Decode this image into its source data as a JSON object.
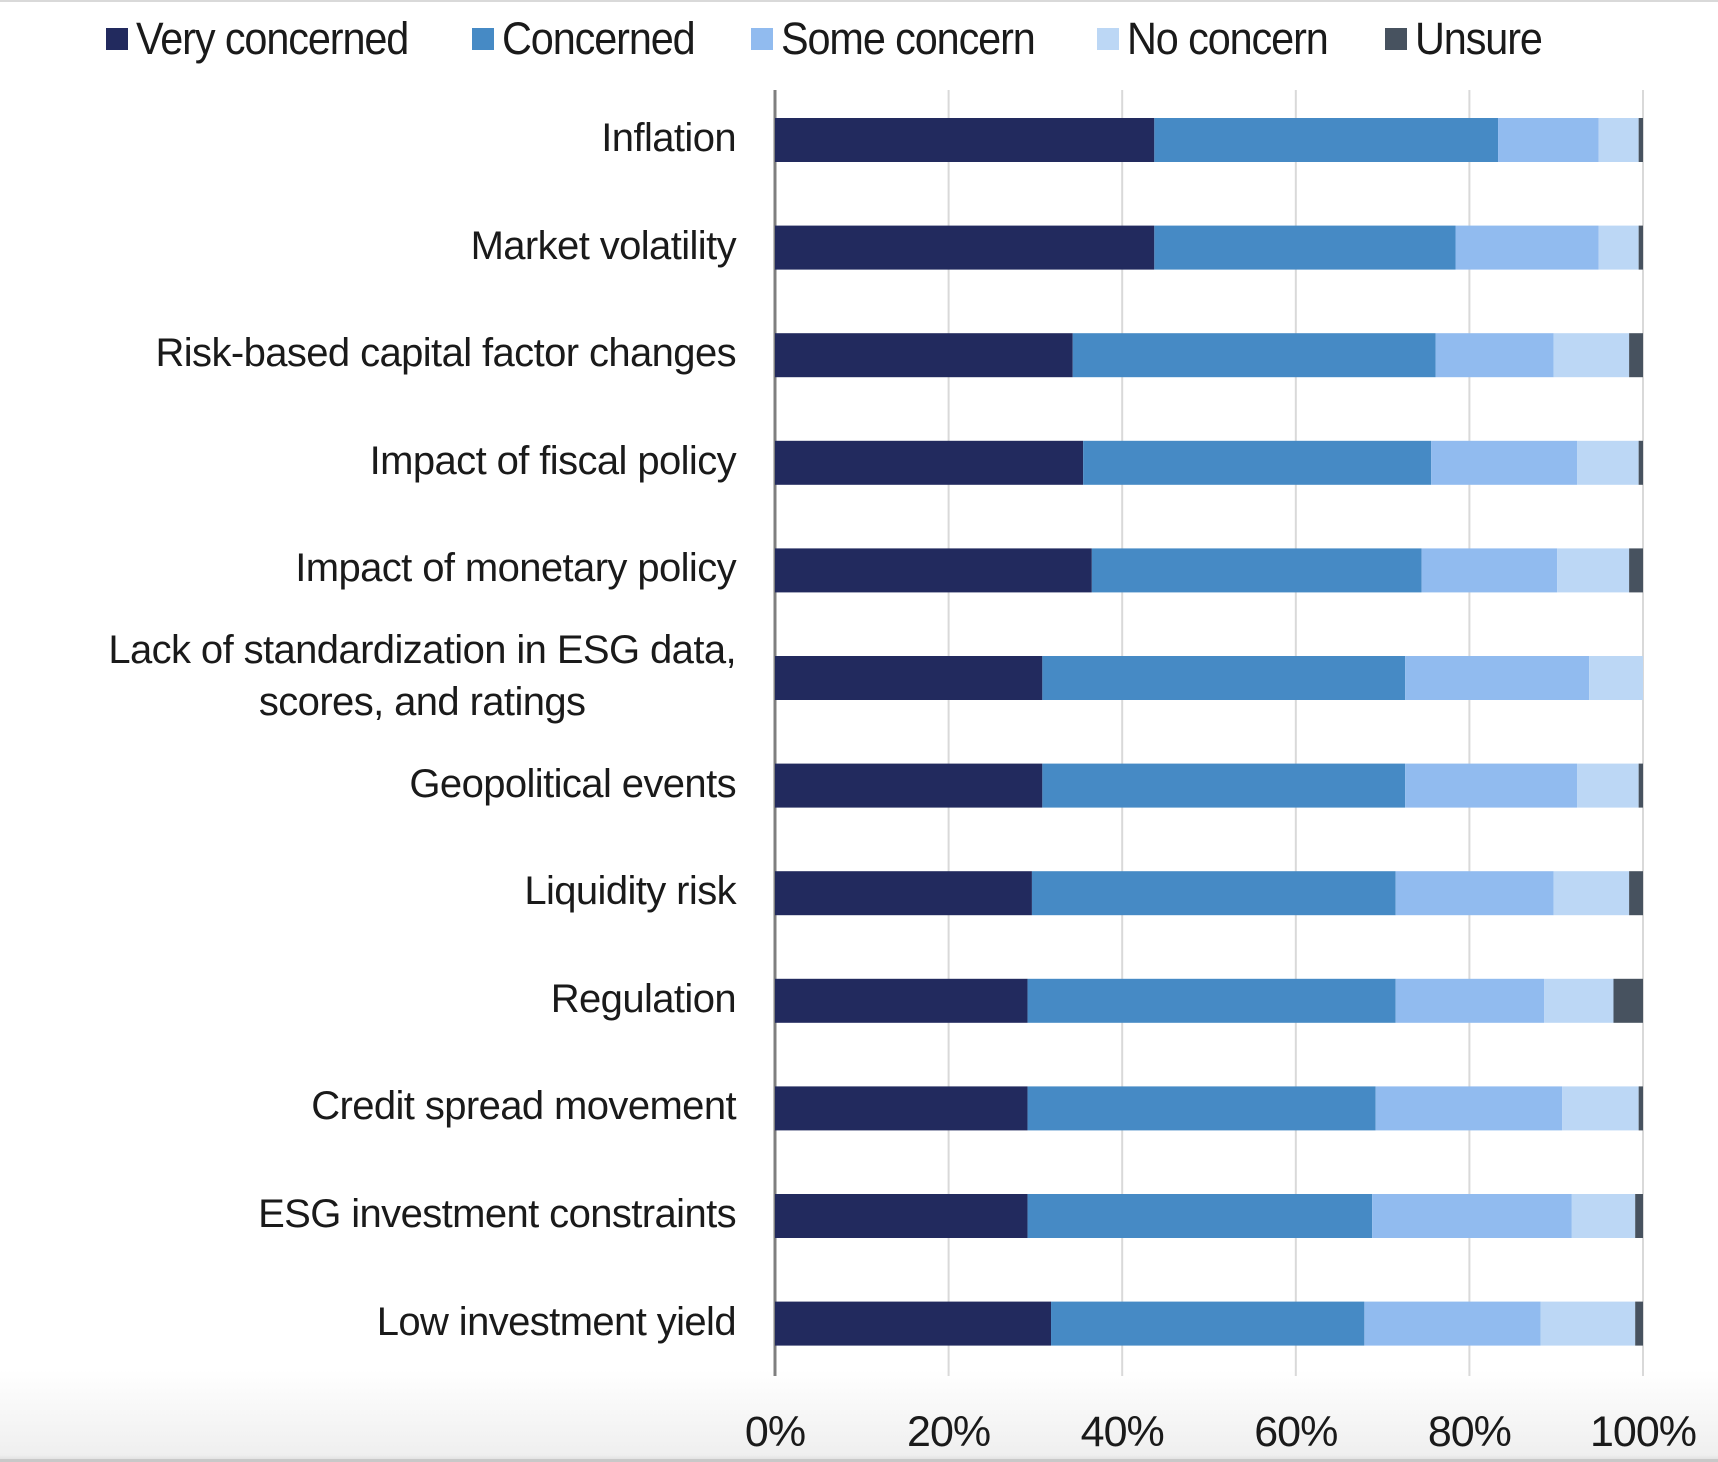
{
  "chart_data": {
    "type": "bar",
    "orientation": "horizontal",
    "stacked": "100%",
    "title": "",
    "xlabel": "",
    "ylabel": "",
    "xlim": [
      0,
      100
    ],
    "x_ticks": [
      "0%",
      "20%",
      "40%",
      "60%",
      "80%",
      "100%"
    ],
    "grid": true,
    "legend_position": "top",
    "categories": [
      "Inflation",
      "Market volatility",
      "Risk-based capital factor changes",
      "Impact of fiscal policy",
      "Impact of monetary policy",
      "Lack of standardization in ESG data, scores, and ratings",
      "Geopolitical events",
      "Liquidity risk",
      "Regulation",
      "Credit spread movement",
      "ESG investment constraints",
      "Low investment yield"
    ],
    "category_lines": [
      [
        "Inflation"
      ],
      [
        "Market volatility"
      ],
      [
        "Risk-based capital factor changes"
      ],
      [
        "Impact of fiscal policy"
      ],
      [
        "Impact of monetary policy"
      ],
      [
        "Lack of standardization in ESG data,",
        "scores, and ratings"
      ],
      [
        "Geopolitical events"
      ],
      [
        "Liquidity risk"
      ],
      [
        "Regulation"
      ],
      [
        "Credit spread movement"
      ],
      [
        "ESG investment constraints"
      ],
      [
        "Low investment yield"
      ]
    ],
    "series": [
      {
        "name": "Very concerned",
        "color": "#222a5e",
        "values": [
          43.7,
          43.7,
          34.3,
          35.5,
          36.5,
          30.8,
          30.8,
          29.6,
          29.1,
          29.1,
          29.1,
          31.8
        ]
      },
      {
        "name": "Concerned",
        "color": "#468ac5",
        "values": [
          39.6,
          34.7,
          41.8,
          40.1,
          38.0,
          41.8,
          41.8,
          41.9,
          42.4,
          40.1,
          39.7,
          36.1
        ]
      },
      {
        "name": "Some concern",
        "color": "#91bbef",
        "values": [
          11.6,
          16.5,
          13.6,
          16.8,
          15.6,
          21.2,
          19.8,
          18.2,
          17.1,
          21.5,
          23.0,
          20.3
        ]
      },
      {
        "name": "No concern",
        "color": "#bcd7f5",
        "values": [
          4.6,
          4.6,
          8.7,
          7.1,
          8.3,
          6.2,
          7.1,
          8.7,
          8.0,
          8.8,
          7.3,
          10.9
        ]
      },
      {
        "name": "Unsure",
        "color": "#47525f",
        "values": [
          0.5,
          0.5,
          1.6,
          0.5,
          1.6,
          0.0,
          0.5,
          1.6,
          3.4,
          0.5,
          0.9,
          0.9
        ]
      }
    ]
  }
}
